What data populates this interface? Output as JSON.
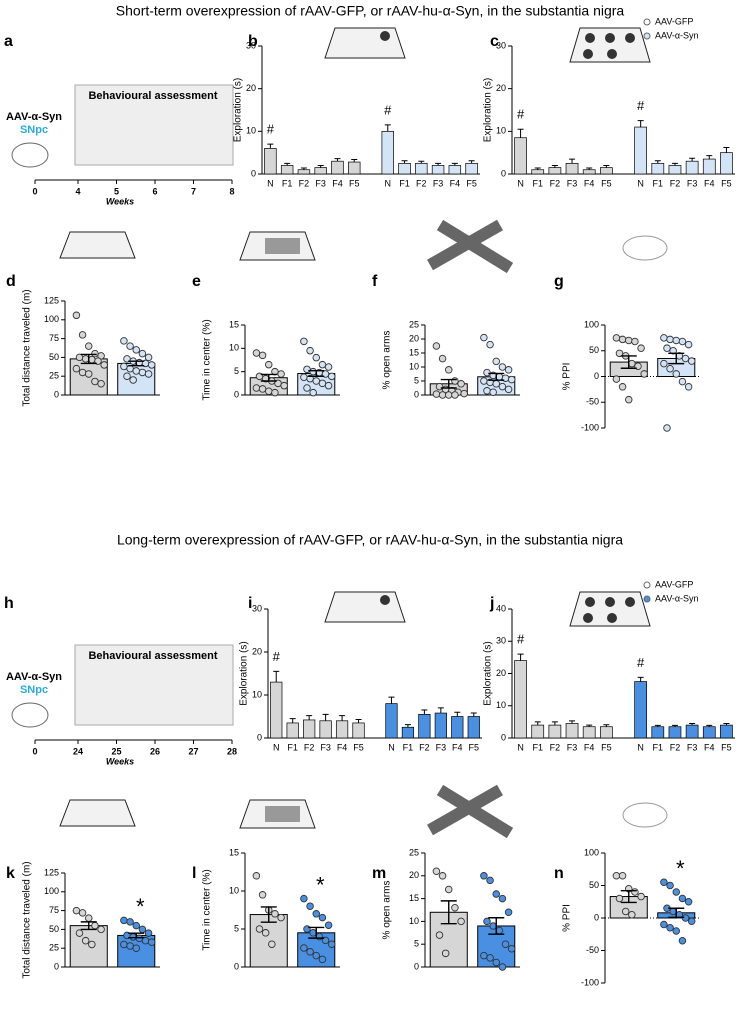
{
  "section_titles": [
    "Short-term overexpression of rAAV-GFP, or rAAV-hu-α-Syn, in the substantia nigra",
    "Long-term overexpression of rAAV-GFP, or rAAV-hu-α-Syn, in the substantia nigra"
  ],
  "chart_data": [
    {
      "type": "timeline",
      "panel": "a",
      "injection": "AAV-α-Syn",
      "region": "SNpc",
      "box_title": "Behavioural assessment",
      "xticks": [
        0,
        4,
        5,
        6,
        7,
        8
      ],
      "xlabel": "Weeks"
    },
    {
      "type": "grouped_bar",
      "panel": "b",
      "ylabel": "Exploration (s)",
      "ylim": [
        0,
        30
      ],
      "yticks": [
        0,
        10,
        20,
        30
      ],
      "categories": [
        "N",
        "F1",
        "F2",
        "F3",
        "F4",
        "F5"
      ],
      "series": [
        {
          "color": "#d6d6d6",
          "values": [
            6,
            2,
            1,
            1.5,
            3,
            2.8
          ],
          "errors": [
            1,
            0.5,
            0.4,
            0.5,
            0.6,
            0.6
          ],
          "marks": [
            "#",
            null,
            null,
            null,
            null,
            null
          ]
        },
        {
          "color": "#d4e4f7",
          "values": [
            10,
            2.5,
            2.5,
            2,
            2,
            2.5
          ],
          "errors": [
            1.5,
            0.6,
            0.5,
            0.5,
            0.5,
            0.6
          ],
          "marks": [
            "#",
            null,
            null,
            null,
            null,
            null
          ]
        }
      ]
    },
    {
      "type": "grouped_bar",
      "panel": "c",
      "ylabel": "Exploration (s)",
      "ylim": [
        0,
        30
      ],
      "yticks": [
        0,
        10,
        20,
        30
      ],
      "categories": [
        "N",
        "F1",
        "F2",
        "F3",
        "F4",
        "F5"
      ],
      "series": [
        {
          "name": "AAV-GFP",
          "color": "#d6d6d6",
          "values": [
            8.5,
            1,
            1.5,
            2.5,
            1,
            1.5
          ],
          "errors": [
            2,
            0.4,
            0.5,
            1,
            0.4,
            0.5
          ],
          "marks": [
            "#",
            null,
            null,
            null,
            null,
            null
          ]
        },
        {
          "name": "AAV-α-Syn",
          "color": "#d4e4f7",
          "values": [
            11,
            2.5,
            2,
            3,
            3.5,
            5
          ],
          "errors": [
            1.5,
            0.6,
            0.5,
            0.7,
            0.8,
            1.2
          ],
          "marks": [
            "#",
            null,
            null,
            null,
            null,
            null
          ]
        }
      ]
    },
    {
      "type": "dot_bar",
      "panel": "d",
      "ylabel": "Total distance traveled (m)",
      "ylim": [
        0,
        125
      ],
      "yticks": [
        0,
        25,
        50,
        75,
        100,
        125
      ],
      "groups": [
        {
          "color": "#d6d6d6",
          "dot": "#d6d6d6",
          "mean": 48,
          "sem": 6,
          "points": [
            106,
            80,
            65,
            55,
            52,
            50,
            48,
            47,
            45,
            40,
            35,
            30,
            28,
            18,
            15
          ]
        },
        {
          "color": "#d4e4f7",
          "dot": "#d4e4f7",
          "mean": 42,
          "sem": 3,
          "points": [
            72,
            65,
            60,
            55,
            50,
            48,
            45,
            43,
            42,
            40,
            38,
            35,
            32,
            30,
            28,
            25,
            20
          ]
        }
      ]
    },
    {
      "type": "dot_bar",
      "panel": "e",
      "ylabel": "Time in center (%)",
      "ylim": [
        0,
        15
      ],
      "yticks": [
        0,
        5,
        10,
        15
      ],
      "groups": [
        {
          "color": "#d6d6d6",
          "dot": "#d6d6d6",
          "mean": 3.7,
          "sem": 0.7,
          "points": [
            9,
            8.5,
            6.5,
            5,
            4.5,
            4,
            3.5,
            3,
            2.5,
            2,
            1.5,
            1.3,
            0.8,
            0.5
          ]
        },
        {
          "color": "#d4e4f7",
          "dot": "#d4e4f7",
          "mean": 4.6,
          "sem": 0.6,
          "points": [
            11.5,
            9.5,
            8,
            6.5,
            6,
            5.5,
            5,
            4.8,
            4.5,
            4,
            3.8,
            3.5,
            3,
            2.5,
            2,
            1.5,
            0.5
          ]
        }
      ]
    },
    {
      "type": "dot_bar",
      "panel": "f",
      "ylabel": "% open arms",
      "ylim": [
        0,
        25
      ],
      "yticks": [
        0,
        5,
        10,
        15,
        20,
        25
      ],
      "groups": [
        {
          "color": "#d6d6d6",
          "dot": "#d6d6d6",
          "mean": 4,
          "sem": 1.5,
          "points": [
            17.5,
            13,
            9,
            5,
            4,
            3,
            2,
            1.5,
            1,
            0.5,
            0.3,
            0,
            0,
            0
          ]
        },
        {
          "color": "#d4e4f7",
          "dot": "#d4e4f7",
          "mean": 6.5,
          "sem": 1.2,
          "points": [
            20.5,
            18,
            12,
            10,
            9,
            8,
            7,
            6.5,
            6,
            5.5,
            5,
            4.5,
            4,
            3,
            2,
            1.5,
            1
          ]
        }
      ]
    },
    {
      "type": "dot_bar",
      "panel": "g",
      "ylabel": "% PPI",
      "ylim": [
        -100,
        100
      ],
      "yticks": [
        -100,
        -50,
        0,
        50,
        100
      ],
      "zero_line": true,
      "groups": [
        {
          "color": "#d6d6d6",
          "dot": "#d6d6d6",
          "mean": 28,
          "sem": 12,
          "points": [
            75,
            72,
            70,
            68,
            55,
            45,
            40,
            25,
            20,
            5,
            -5,
            -20,
            -45
          ]
        },
        {
          "color": "#d4e4f7",
          "dot": "#d4e4f7",
          "mean": 35,
          "sem": 10,
          "points": [
            75,
            72,
            70,
            68,
            62,
            55,
            50,
            40,
            35,
            30,
            25,
            15,
            5,
            -10,
            -20,
            -100
          ]
        }
      ]
    },
    {
      "type": "timeline",
      "panel": "h",
      "injection": "AAV-α-Syn",
      "region": "SNpc",
      "box_title": "Behavioural assessment",
      "xticks": [
        0,
        24,
        25,
        26,
        27,
        28
      ],
      "xlabel": "Weeks"
    },
    {
      "type": "grouped_bar",
      "panel": "i",
      "ylabel": "Exploration (s)",
      "ylim": [
        0,
        30
      ],
      "yticks": [
        0,
        10,
        20,
        30
      ],
      "categories": [
        "N",
        "F1",
        "F2",
        "F3",
        "F4",
        "F5"
      ],
      "series": [
        {
          "color": "#d6d6d6",
          "values": [
            13,
            3.5,
            4.2,
            4,
            4,
            3.5
          ],
          "errors": [
            2.5,
            1,
            1,
            1.5,
            1.2,
            0.8
          ],
          "marks": [
            "#",
            null,
            null,
            null,
            null,
            null
          ]
        },
        {
          "color": "#4a90e2",
          "values": [
            8,
            2.5,
            5.5,
            5.8,
            5,
            5
          ],
          "errors": [
            1.5,
            0.6,
            1,
            1.2,
            1,
            0.8
          ],
          "marks": [
            null,
            null,
            null,
            null,
            null,
            null
          ]
        }
      ]
    },
    {
      "type": "grouped_bar",
      "panel": "j",
      "ylabel": "Exploration (s)",
      "ylim": [
        0,
        40
      ],
      "yticks": [
        0,
        10,
        20,
        30,
        40
      ],
      "categories": [
        "N",
        "F1",
        "F2",
        "F3",
        "F4",
        "F5"
      ],
      "series": [
        {
          "name": "AAV-GFP",
          "color": "#d6d6d6",
          "values": [
            24,
            4,
            4,
            4.5,
            3.5,
            3.5
          ],
          "errors": [
            2,
            1,
            1,
            0.8,
            0.5,
            0.6
          ],
          "marks": [
            "#",
            null,
            null,
            null,
            null,
            null
          ]
        },
        {
          "name": "AAV-α-Syn",
          "color": "#4a90e2",
          "values": [
            17.5,
            3.5,
            3.5,
            4,
            3.5,
            4
          ],
          "errors": [
            1.3,
            0.4,
            0.4,
            0.5,
            0.4,
            0.5
          ],
          "marks": [
            "#",
            null,
            null,
            null,
            null,
            null
          ]
        }
      ]
    },
    {
      "type": "dot_bar",
      "panel": "k",
      "ylabel": "Total distance traveled (m)",
      "ylim": [
        0,
        125
      ],
      "yticks": [
        0,
        25,
        50,
        75,
        100,
        125
      ],
      "groups": [
        {
          "color": "#d6d6d6",
          "dot": "#d6d6d6",
          "mean": 55,
          "sem": 5,
          "points": [
            75,
            72,
            65,
            55,
            50,
            45,
            35,
            30
          ],
          "mark": null
        },
        {
          "color": "#4a90e2",
          "dot": "#4a90e2",
          "mean": 42,
          "sem": 3,
          "points": [
            62,
            60,
            55,
            50,
            45,
            42,
            40,
            38,
            35,
            33,
            30,
            28,
            25
          ],
          "mark": "*"
        }
      ]
    },
    {
      "type": "dot_bar",
      "panel": "l",
      "ylabel": "Time in center (%)",
      "ylim": [
        0,
        15
      ],
      "yticks": [
        0,
        5,
        10,
        15
      ],
      "groups": [
        {
          "color": "#d6d6d6",
          "dot": "#d6d6d6",
          "mean": 6.9,
          "sem": 1,
          "points": [
            12,
            9.5,
            7.5,
            7,
            6.5,
            5,
            4.5,
            3
          ],
          "mark": null
        },
        {
          "color": "#4a90e2",
          "dot": "#4a90e2",
          "mean": 4.5,
          "sem": 0.7,
          "points": [
            9,
            8,
            7,
            6.5,
            5.5,
            5,
            4.5,
            4,
            3.5,
            3,
            2.5,
            2,
            1.5,
            1
          ],
          "mark": "*"
        }
      ]
    },
    {
      "type": "dot_bar",
      "panel": "m",
      "ylabel": "% open arms",
      "ylim": [
        0,
        25
      ],
      "yticks": [
        0,
        5,
        10,
        15,
        20,
        25
      ],
      "groups": [
        {
          "color": "#d6d6d6",
          "dot": "#d6d6d6",
          "mean": 12,
          "sem": 2.5,
          "points": [
            21,
            20,
            17,
            13,
            10,
            7,
            3
          ]
        },
        {
          "color": "#4a90e2",
          "dot": "#4a90e2",
          "mean": 9,
          "sem": 1.8,
          "points": [
            20,
            19,
            16,
            15,
            12,
            10,
            9,
            8,
            5,
            4,
            2.5,
            2,
            1,
            0
          ]
        }
      ]
    },
    {
      "type": "dot_bar",
      "panel": "n",
      "ylabel": "% PPI",
      "ylim": [
        -100,
        100
      ],
      "yticks": [
        -100,
        -50,
        0,
        50,
        100
      ],
      "zero_line": true,
      "groups": [
        {
          "color": "#d6d6d6",
          "dot": "#d6d6d6",
          "mean": 33,
          "sem": 9,
          "points": [
            65,
            65,
            45,
            40,
            33,
            30,
            10,
            5
          ],
          "mark": null
        },
        {
          "color": "#4a90e2",
          "dot": "#4a90e2",
          "mean": 8,
          "sem": 7,
          "points": [
            55,
            50,
            40,
            30,
            25,
            15,
            10,
            5,
            0,
            -5,
            -10,
            -15,
            -20,
            -35
          ],
          "mark": "*"
        }
      ]
    }
  ]
}
